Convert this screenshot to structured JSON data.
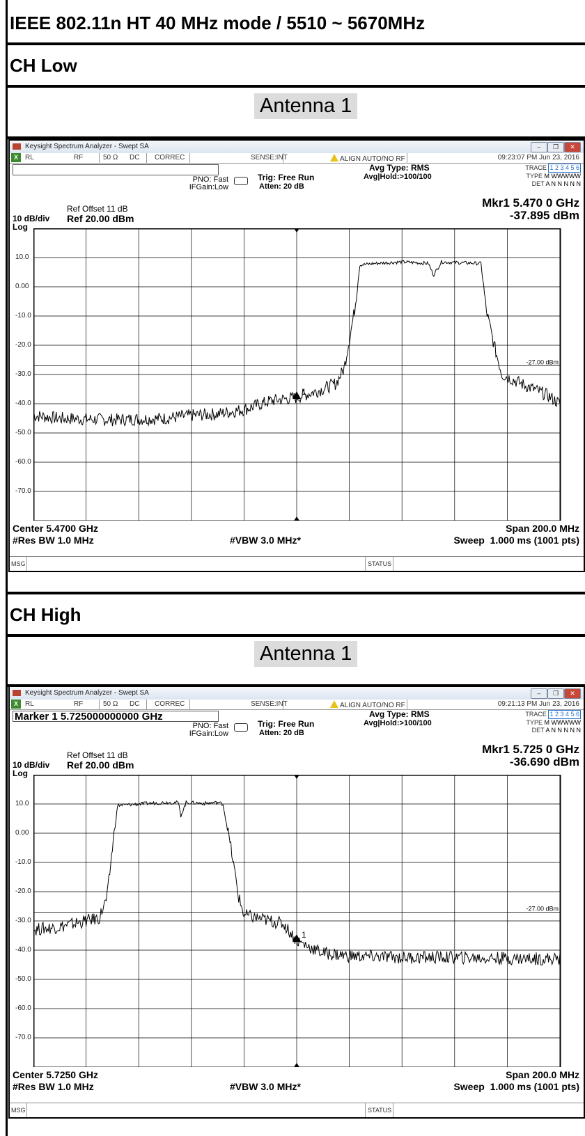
{
  "page_title": "IEEE 802.11n HT 40 MHz mode / 5510 ~ 5670MHz",
  "sections": [
    {
      "header": "CH Low",
      "antenna": "Antenna 1",
      "analyzer": {
        "window_title": "Keysight Spectrum Analyzer - Swept SA",
        "status": {
          "rl": "RL",
          "rf": "RF",
          "ohm": "50 Ω",
          "dc": "DC",
          "correc": "CORREC",
          "sense": "SENSE:INT",
          "align": "ALIGN AUTO/NO RF",
          "time": "09:23:07 PM Jun 23, 2016"
        },
        "marker_entry": "",
        "pno": "PNO: Fast",
        "ifgain": "IFGain:Low",
        "trig": "Trig: Free Run",
        "atten": "Atten: 20 dB",
        "avg_type": "Avg Type: RMS",
        "avg_hold": "Avg|Hold:>100/100",
        "trace_label": "TRACE",
        "trace_nums": "1 2 3 4 5 6",
        "type_label": "TYPE",
        "type_val": "M WWWWW",
        "det_label": "DET",
        "det_val": "A N N N N N",
        "ref_offset": "Ref Offset 11 dB",
        "ref_level": "Ref 20.00 dBm",
        "scale": "10 dB/div",
        "scale_type": "Log",
        "mkr_freq": "Mkr1 5.470 0 GHz",
        "mkr_level": "-37.895 dBm",
        "limit_label": "-27.00 dBm",
        "marker_num": "1",
        "center": "Center 5.4700 GHz",
        "res_bw": "#Res BW 1.0 MHz",
        "vbw": "#VBW 3.0 MHz*",
        "span": "Span 200.0 MHz",
        "sweep": "Sweep  1.000 ms (1001 pts)",
        "msg": "MSG",
        "status_label": "STATUS",
        "y_ticks": [
          "10.0",
          "0.00",
          "-10.0",
          "-20.0",
          "-30.0",
          "-40.0",
          "-50.0",
          "-60.0",
          "-70.0"
        ],
        "chart_data": {
          "type": "line",
          "x_unit": "MHz offset from center",
          "xlim": [
            -100,
            100
          ],
          "ylim": [
            -80,
            20
          ],
          "limit_line": -27,
          "marker": {
            "x": 0,
            "y": -37.895
          },
          "trace": [
            [
              -100,
              -44
            ],
            [
              -90,
              -45
            ],
            [
              -70,
              -45.5
            ],
            [
              -50,
              -45
            ],
            [
              -40,
              -44
            ],
            [
              -30,
              -43.5
            ],
            [
              -20,
              -42
            ],
            [
              -10,
              -39
            ],
            [
              0,
              -37.9
            ],
            [
              10,
              -35
            ],
            [
              15,
              -33
            ],
            [
              18,
              -28
            ],
            [
              20,
              -18
            ],
            [
              22,
              -8
            ],
            [
              24,
              7.5
            ],
            [
              30,
              8
            ],
            [
              40,
              8.5
            ],
            [
              50,
              8
            ],
            [
              52,
              4
            ],
            [
              55,
              8.5
            ],
            [
              60,
              8.3
            ],
            [
              70,
              8
            ],
            [
              72,
              -8
            ],
            [
              75,
              -20
            ],
            [
              78,
              -30
            ],
            [
              85,
              -33
            ],
            [
              90,
              -35
            ],
            [
              95,
              -37
            ],
            [
              100,
              -40
            ]
          ]
        }
      }
    },
    {
      "header": "CH  High",
      "antenna": "Antenna 1",
      "analyzer": {
        "window_title": "Keysight Spectrum Analyzer - Swept SA",
        "status": {
          "rl": "RL",
          "rf": "RF",
          "ohm": "50 Ω",
          "dc": "DC",
          "correc": "CORREC",
          "sense": "SENSE:INT",
          "align": "ALIGN AUTO/NO RF",
          "time": "09:21:13 PM Jun 23, 2016"
        },
        "marker_entry": "Marker 1 5.725000000000 GHz",
        "pno": "PNO: Fast",
        "ifgain": "IFGain:Low",
        "trig": "Trig: Free Run",
        "atten": "Atten: 20 dB",
        "avg_type": "Avg Type: RMS",
        "avg_hold": "Avg|Hold:>100/100",
        "trace_label": "TRACE",
        "trace_nums": "1 2 3 4 5 6",
        "type_label": "TYPE",
        "type_val": "M WWWWW",
        "det_label": "DET",
        "det_val": "A N N N N N",
        "ref_offset": "Ref Offset 11 dB",
        "ref_level": "Ref 20.00 dBm",
        "scale": "10 dB/div",
        "scale_type": "Log",
        "mkr_freq": "Mkr1 5.725 0 GHz",
        "mkr_level": "-36.690 dBm",
        "limit_label": "-27.00 dBm",
        "marker_num": "1",
        "center": "Center 5.7250 GHz",
        "res_bw": "#Res BW 1.0 MHz",
        "vbw": "#VBW 3.0 MHz*",
        "span": "Span 200.0 MHz",
        "sweep": "Sweep  1.000 ms (1001 pts)",
        "msg": "MSG",
        "status_label": "STATUS",
        "y_ticks": [
          "10.0",
          "0.00",
          "-10.0",
          "-20.0",
          "-30.0",
          "-40.0",
          "-50.0",
          "-60.0",
          "-70.0"
        ],
        "chart_data": {
          "type": "line",
          "x_unit": "MHz offset from center",
          "xlim": [
            -100,
            100
          ],
          "ylim": [
            -80,
            20
          ],
          "limit_line": -27,
          "marker": {
            "x": 0,
            "y": -36.69
          },
          "trace": [
            [
              -100,
              -33
            ],
            [
              -90,
              -32
            ],
            [
              -80,
              -30
            ],
            [
              -75,
              -29
            ],
            [
              -72,
              -22
            ],
            [
              -70,
              -5
            ],
            [
              -68,
              9.5
            ],
            [
              -60,
              10
            ],
            [
              -50,
              10.5
            ],
            [
              -45,
              10.5
            ],
            [
              -44,
              6
            ],
            [
              -42,
              10.5
            ],
            [
              -30,
              10.5
            ],
            [
              -35,
              10.2
            ],
            [
              -28,
              10
            ],
            [
              -25,
              -5
            ],
            [
              -22,
              -22
            ],
            [
              -20,
              -28
            ],
            [
              -10,
              -30
            ],
            [
              -5,
              -31
            ],
            [
              0,
              -36.7
            ],
            [
              5,
              -39
            ],
            [
              10,
              -41
            ],
            [
              20,
              -42
            ],
            [
              40,
              -42.5
            ],
            [
              60,
              -42.5
            ],
            [
              80,
              -42.8
            ],
            [
              100,
              -43
            ]
          ]
        }
      }
    }
  ]
}
